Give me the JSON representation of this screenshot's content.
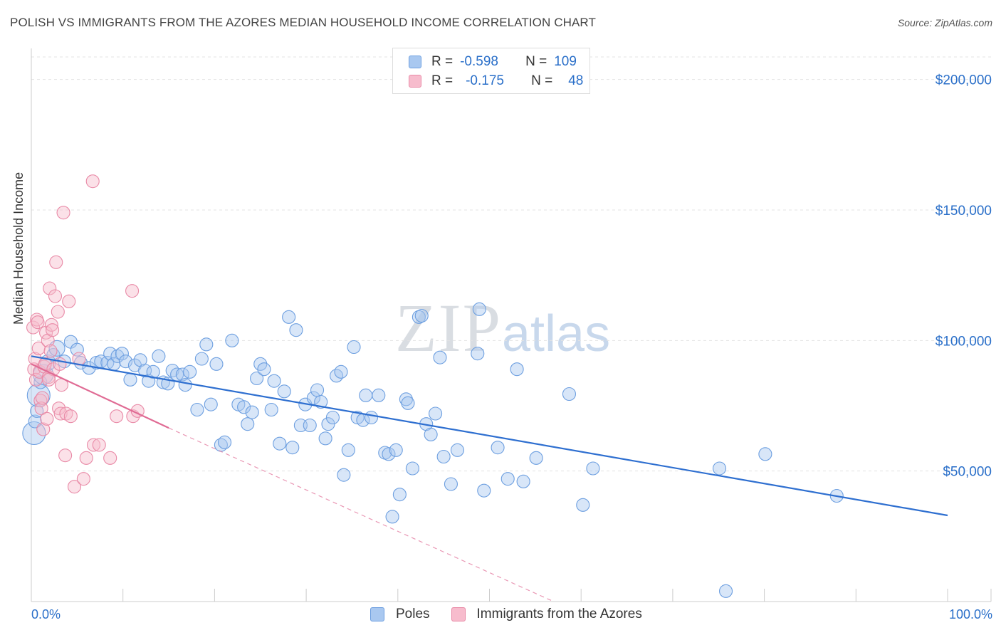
{
  "header": {
    "title": "POLISH VS IMMIGRANTS FROM THE AZORES MEDIAN HOUSEHOLD INCOME CORRELATION CHART",
    "source": "Source: ZipAtlas.com"
  },
  "watermark": {
    "zip": "ZIP",
    "atlas": "atlas"
  },
  "legend": {
    "rows": [
      {
        "r_label": "R =",
        "r_value": "-0.598",
        "n_label": "N =",
        "n_value": "109",
        "color": "#a9c8f0",
        "border": "#6d9fe0"
      },
      {
        "r_label": "R =",
        "r_value": "-0.175",
        "n_label": "N =",
        "n_value": "48",
        "color": "#f7bccd",
        "border": "#e98aa7"
      }
    ]
  },
  "chart_data": {
    "type": "scatter",
    "title": "POLISH VS IMMIGRANTS FROM THE AZORES MEDIAN HOUSEHOLD INCOME CORRELATION CHART",
    "xlabel": "",
    "ylabel": "Median Household Income",
    "xlim": [
      0,
      100
    ],
    "ylim": [
      0,
      210000
    ],
    "x_tick_labels": {
      "left": "0.0%",
      "right": "100.0%"
    },
    "y_ticks": [
      {
        "value": 50000,
        "label": "$50,000"
      },
      {
        "value": 100000,
        "label": "$100,000"
      },
      {
        "value": 150000,
        "label": "$150,000"
      },
      {
        "value": 200000,
        "label": "$200,000"
      }
    ],
    "series": [
      {
        "name": "Poles",
        "color": "#a9c8f0",
        "stroke": "#6d9fe0",
        "trend": {
          "x0": 0,
          "y0": 94000,
          "x1": 100,
          "y1": 33000,
          "color": "#2e6fd0"
        },
        "points": [
          [
            0.3,
            64500
          ],
          [
            0.4,
            69000
          ],
          [
            0.6,
            73000
          ],
          [
            0.8,
            79000
          ],
          [
            1.0,
            84000
          ],
          [
            1.3,
            87000
          ],
          [
            1.8,
            91500
          ],
          [
            2.4,
            94500
          ],
          [
            2.8,
            97000
          ],
          [
            3.6,
            92000
          ],
          [
            4.3,
            99500
          ],
          [
            5.0,
            96500
          ],
          [
            5.4,
            91500
          ],
          [
            6.3,
            89500
          ],
          [
            7.1,
            91500
          ],
          [
            7.6,
            92000
          ],
          [
            8.3,
            91500
          ],
          [
            8.6,
            95000
          ],
          [
            9.0,
            91000
          ],
          [
            9.4,
            94000
          ],
          [
            9.9,
            95000
          ],
          [
            10.3,
            92000
          ],
          [
            10.8,
            85000
          ],
          [
            11.3,
            90500
          ],
          [
            11.9,
            92500
          ],
          [
            12.4,
            88500
          ],
          [
            12.8,
            84500
          ],
          [
            13.3,
            88000
          ],
          [
            13.9,
            94000
          ],
          [
            14.4,
            84000
          ],
          [
            14.9,
            83500
          ],
          [
            15.4,
            88500
          ],
          [
            15.9,
            87000
          ],
          [
            16.5,
            87000
          ],
          [
            16.8,
            83000
          ],
          [
            17.3,
            88000
          ],
          [
            18.1,
            73500
          ],
          [
            18.6,
            93000
          ],
          [
            19.1,
            98500
          ],
          [
            19.6,
            75500
          ],
          [
            20.2,
            91000
          ],
          [
            20.7,
            60000
          ],
          [
            21.1,
            61000
          ],
          [
            21.9,
            100000
          ],
          [
            22.6,
            75500
          ],
          [
            23.2,
            74500
          ],
          [
            23.6,
            68000
          ],
          [
            24.1,
            72500
          ],
          [
            24.6,
            85500
          ],
          [
            25.0,
            91000
          ],
          [
            25.4,
            89000
          ],
          [
            26.2,
            73500
          ],
          [
            26.5,
            84500
          ],
          [
            27.1,
            60500
          ],
          [
            27.6,
            80500
          ],
          [
            28.1,
            109000
          ],
          [
            28.5,
            59000
          ],
          [
            28.9,
            104000
          ],
          [
            29.4,
            67500
          ],
          [
            29.9,
            75500
          ],
          [
            30.4,
            67500
          ],
          [
            30.8,
            78000
          ],
          [
            31.2,
            81000
          ],
          [
            31.6,
            76500
          ],
          [
            32.1,
            62500
          ],
          [
            32.4,
            68000
          ],
          [
            32.9,
            70500
          ],
          [
            33.3,
            86500
          ],
          [
            33.8,
            88000
          ],
          [
            34.1,
            48500
          ],
          [
            34.6,
            58000
          ],
          [
            35.2,
            97500
          ],
          [
            35.6,
            70500
          ],
          [
            36.2,
            69500
          ],
          [
            36.5,
            79000
          ],
          [
            37.1,
            70500
          ],
          [
            37.9,
            79000
          ],
          [
            38.6,
            57000
          ],
          [
            39.0,
            56500
          ],
          [
            39.4,
            32500
          ],
          [
            39.8,
            58000
          ],
          [
            40.2,
            41000
          ],
          [
            40.9,
            77500
          ],
          [
            41.1,
            76000
          ],
          [
            41.6,
            51000
          ],
          [
            42.3,
            109000
          ],
          [
            42.6,
            109500
          ],
          [
            43.1,
            68000
          ],
          [
            43.6,
            64000
          ],
          [
            44.1,
            72000
          ],
          [
            44.6,
            93500
          ],
          [
            45.0,
            55500
          ],
          [
            45.8,
            45000
          ],
          [
            46.5,
            58000
          ],
          [
            48.7,
            95000
          ],
          [
            48.9,
            112000
          ],
          [
            49.4,
            42500
          ],
          [
            50.9,
            59000
          ],
          [
            52.0,
            47000
          ],
          [
            53.0,
            89000
          ],
          [
            53.7,
            46000
          ],
          [
            55.1,
            55000
          ],
          [
            58.7,
            79500
          ],
          [
            60.2,
            37000
          ],
          [
            61.3,
            51000
          ],
          [
            75.1,
            51000
          ],
          [
            75.8,
            4000
          ],
          [
            80.1,
            56500
          ],
          [
            87.9,
            40500
          ]
        ],
        "point_sizes": {
          "default": 9,
          "large": [
            [
              0.3,
              16
            ],
            [
              0.8,
              16
            ],
            [
              1.3,
              14
            ],
            [
              2.8,
              11
            ],
            [
              1.8,
              11
            ]
          ]
        }
      },
      {
        "name": "Immigrants from the Azores",
        "color": "#f7bccd",
        "stroke": "#e98aa7",
        "trend": {
          "x0": 0,
          "y0": 91000,
          "x1": 15,
          "y1": 66500,
          "dash_to_x": 57,
          "dash_to_y": 0,
          "color": "#e06b94"
        },
        "points": [
          [
            0.2,
            105000
          ],
          [
            0.3,
            89000
          ],
          [
            0.4,
            93000
          ],
          [
            0.5,
            85000
          ],
          [
            0.6,
            108000
          ],
          [
            0.7,
            107000
          ],
          [
            0.8,
            97000
          ],
          [
            0.9,
            88000
          ],
          [
            1.0,
            77000
          ],
          [
            1.1,
            74000
          ],
          [
            1.2,
            78000
          ],
          [
            1.3,
            66000
          ],
          [
            1.4,
            90000
          ],
          [
            1.5,
            91000
          ],
          [
            1.6,
            103000
          ],
          [
            1.7,
            70000
          ],
          [
            1.8,
            100000
          ],
          [
            1.9,
            86000
          ],
          [
            2.0,
            120000
          ],
          [
            2.1,
            96000
          ],
          [
            2.2,
            106000
          ],
          [
            2.3,
            104000
          ],
          [
            2.4,
            89000
          ],
          [
            2.6,
            117000
          ],
          [
            2.7,
            130000
          ],
          [
            2.9,
            111000
          ],
          [
            3.0,
            74000
          ],
          [
            3.1,
            91000
          ],
          [
            3.2,
            72000
          ],
          [
            3.3,
            83000
          ],
          [
            3.5,
            149000
          ],
          [
            3.7,
            56000
          ],
          [
            3.8,
            72000
          ],
          [
            4.1,
            115000
          ],
          [
            4.3,
            71000
          ],
          [
            4.7,
            44000
          ],
          [
            5.2,
            93000
          ],
          [
            5.7,
            47000
          ],
          [
            6.0,
            55000
          ],
          [
            6.7,
            161000
          ],
          [
            6.8,
            60000
          ],
          [
            7.4,
            60000
          ],
          [
            8.6,
            55000
          ],
          [
            9.3,
            71000
          ],
          [
            11.0,
            119000
          ],
          [
            11.1,
            71000
          ],
          [
            11.6,
            73000
          ],
          [
            1.9,
            85000
          ]
        ],
        "point_sizes": {
          "default": 9
        }
      }
    ],
    "legend_position": "top-center",
    "grid": true
  },
  "bottom_legend": {
    "items": [
      {
        "label": "Poles"
      },
      {
        "label": "Immigrants from the Azores"
      }
    ]
  }
}
